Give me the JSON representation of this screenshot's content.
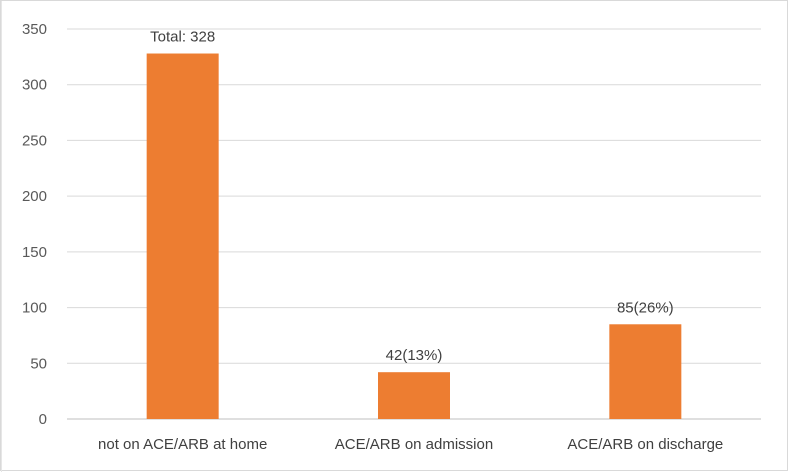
{
  "chart_data": {
    "type": "bar",
    "categories": [
      "not on ACE/ARB at home",
      "ACE/ARB on admission",
      "ACE/ARB on discharge"
    ],
    "values": [
      328,
      42,
      85
    ],
    "data_labels": [
      "Total: 328",
      "42(13%)",
      "85(26%)"
    ],
    "title": "",
    "xlabel": "",
    "ylabel": "",
    "ylim": [
      0,
      350
    ],
    "yticks": [
      0,
      50,
      100,
      150,
      200,
      250,
      300,
      350
    ],
    "grid": true,
    "legend": "none",
    "bar_color": "#ed7d31"
  }
}
